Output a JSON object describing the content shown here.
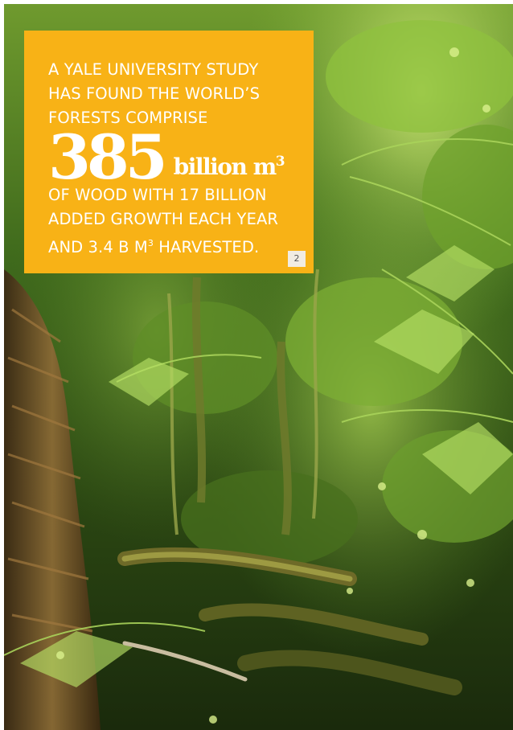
{
  "callout": {
    "lead_lines": [
      "A Yale University study",
      "has found the world’s",
      "forests comprise"
    ],
    "big_number": "385",
    "big_unit": "billion m",
    "big_unit_superscript": "3",
    "tail_line_1": "of wood with 17 billion",
    "tail_line_2": "added growth each year",
    "tail_line_3_prefix": "and 3.4 B M",
    "tail_line_3_superscript": "3",
    "tail_line_3_suffix": " harvested.",
    "footnote_marker": "2"
  },
  "colors": {
    "callout_background": "#f8b216",
    "callout_text": "#ffffff",
    "footnote_background": "#f1ece2"
  },
  "background_photo": {
    "subject": "fern-rainforest-photo"
  }
}
